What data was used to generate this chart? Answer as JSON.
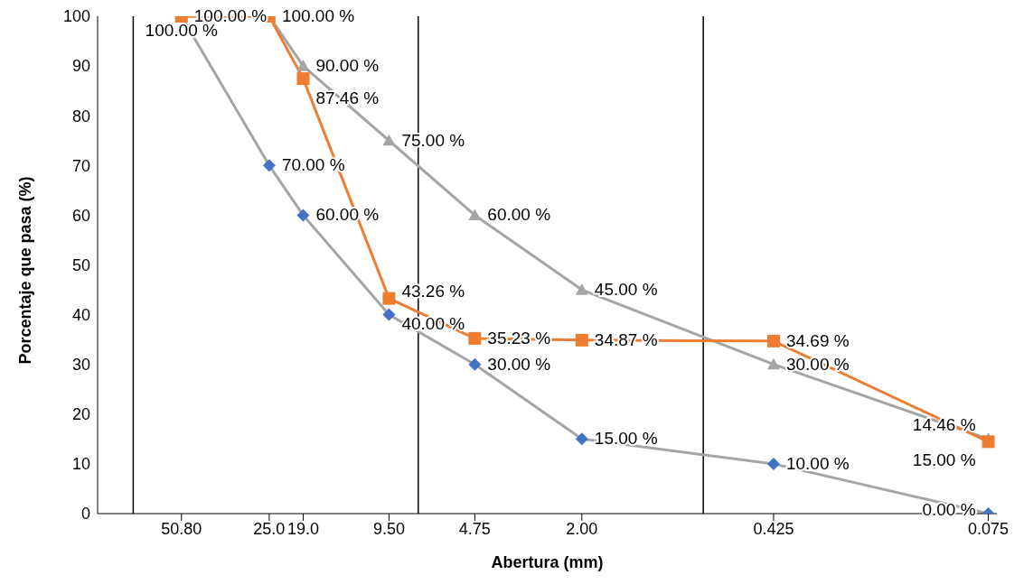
{
  "chart_data": {
    "type": "line",
    "xlabel": "Abertura (mm)",
    "ylabel": "Porcentaje que pasa (%)",
    "log": "x",
    "x": [
      50.8,
      25,
      19,
      9.5,
      4.75,
      2,
      0.425,
      0.075
    ],
    "xlim": [
      100,
      0.07
    ],
    "xticks": [
      {
        "value": 50.8,
        "label": "50.80"
      },
      {
        "value": 25,
        "label": "25.0"
      },
      {
        "value": 19,
        "label": "19.0"
      },
      {
        "value": 9.5,
        "label": "9.50"
      },
      {
        "value": 4.75,
        "label": "4.75"
      },
      {
        "value": 2,
        "label": "2.00"
      },
      {
        "value": 0.425,
        "label": "0.425"
      },
      {
        "value": 0.075,
        "label": "0.075"
      }
    ],
    "ylim": [
      0,
      100
    ],
    "yticks": [
      0,
      10,
      20,
      30,
      40,
      50,
      60,
      70,
      80,
      90,
      100
    ],
    "ref_lines": [
      {
        "axis": "x",
        "value": 75,
        "color": "#000000"
      },
      {
        "axis": "x",
        "value": 7.5,
        "color": "#000000"
      },
      {
        "axis": "x",
        "value": 0.75,
        "color": "#000000"
      }
    ],
    "series": [
      {
        "color": "#a5a5a5",
        "colors": [
          "#4472c4",
          "#4472c4",
          "#4472c4",
          "#4472c4",
          "#4472c4",
          "#4472c4",
          "#4472c4",
          "#4472c4"
        ],
        "marker": "diamond",
        "values": [
          100,
          70,
          60,
          40,
          30,
          15,
          10,
          0
        ],
        "value_labels": [
          "100.00 %",
          "70.00 %",
          "60.00 %",
          "40.00 %",
          "30.00 %",
          "15.00 %",
          "10.00 %",
          "0.00 %"
        ]
      },
      {
        "color": "#a5a5a5",
        "marker": "triangle",
        "values": [
          100,
          100,
          90,
          75,
          60,
          45,
          30,
          15
        ],
        "value_labels": [
          null,
          null,
          "90.00 %",
          "75.00 %",
          "60.00 %",
          "45.00 %",
          "30.00 %",
          "15.00 %"
        ]
      },
      {
        "color": "#ed7d31",
        "marker": "square",
        "values": [
          100,
          100,
          87.46,
          43.26,
          35.23,
          34.87,
          34.69,
          14.46
        ],
        "value_labels": [
          "100.00 %",
          "100.00 %",
          "87.46 %",
          "43.26 %",
          "35.23 %",
          "34.87 %",
          "34.69 %",
          "14.46 %"
        ]
      }
    ]
  }
}
